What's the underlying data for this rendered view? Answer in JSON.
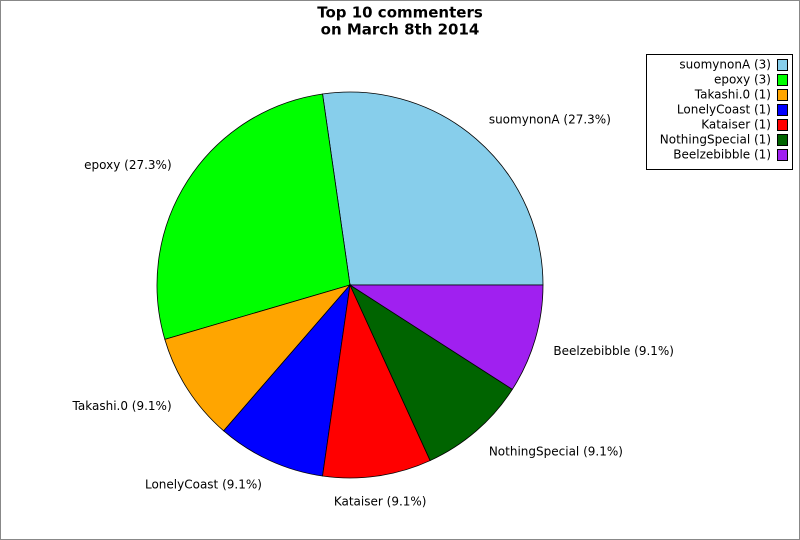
{
  "chart_data": {
    "type": "pie",
    "title": [
      "Top 10 commenters",
      "on March 8th 2014"
    ],
    "values": [
      27.3,
      27.3,
      9.1,
      9.1,
      9.1,
      9.1,
      9.1
    ],
    "value_labels": [
      "suomynonA (27.3%)",
      "epoxy (27.3%)",
      "Takashi.0 (9.1%)",
      "LonelyCoast (9.1%)",
      "Kataiser (9.1%)",
      "NothingSpecial (9.1%)",
      "Beelzebibble (9.1%)"
    ],
    "legend_labels": [
      "suomynonA (3)",
      "epoxy (3)",
      "Takashi.0 (1)",
      "LonelyCoast (1)",
      "Kataiser (1)",
      "NothingSpecial (1)",
      "Beelzebibble (1)"
    ],
    "colors": [
      "#87ceeb",
      "#00ff00",
      "#ffa500",
      "#0000ff",
      "#ff0000",
      "#006400",
      "#a020f0"
    ],
    "legend": "top-right"
  }
}
